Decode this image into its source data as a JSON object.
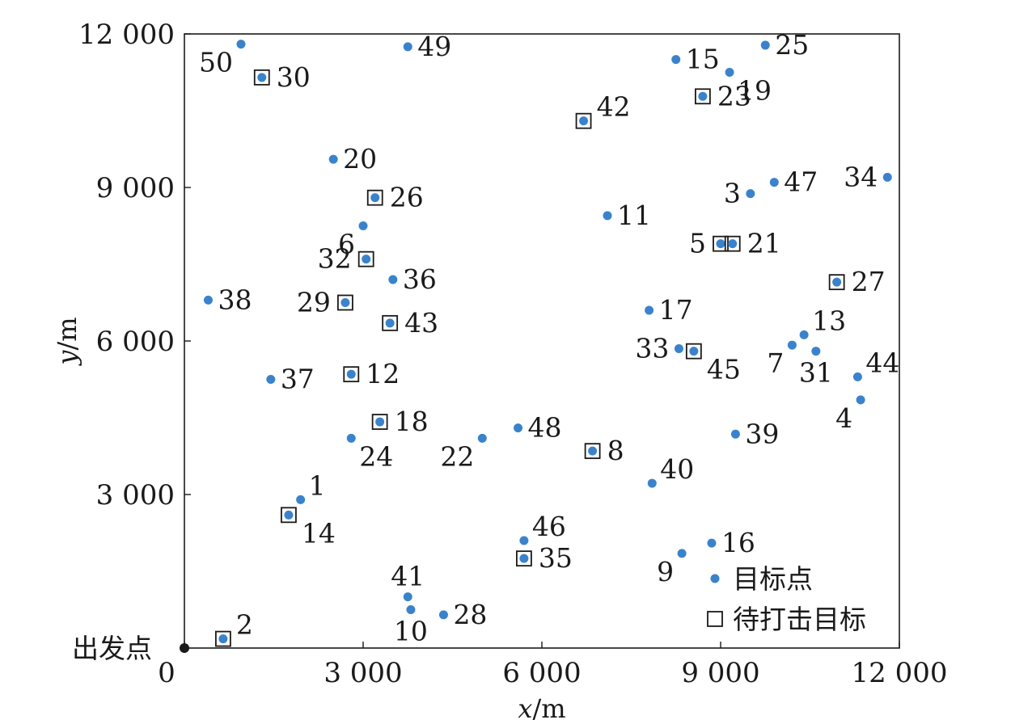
{
  "chart_data": {
    "type": "scatter",
    "xlabel_var": "x",
    "xlabel_unit": "/m",
    "ylabel_var": "y",
    "ylabel_unit": "/m",
    "xlim": [
      0,
      12000
    ],
    "ylim": [
      0,
      12000
    ],
    "x_ticks": [
      {
        "value": 0,
        "label": "0"
      },
      {
        "value": 3000,
        "label": "3 000"
      },
      {
        "value": 6000,
        "label": "6 000"
      },
      {
        "value": 9000,
        "label": "9 000"
      },
      {
        "value": 12000,
        "label": "12 000"
      }
    ],
    "y_ticks": [
      {
        "value": 3000,
        "label": "3 000"
      },
      {
        "value": 6000,
        "label": "6 000"
      },
      {
        "value": 9000,
        "label": "9 000"
      },
      {
        "value": 12000,
        "label": "12 000"
      }
    ],
    "grid": false,
    "legend_position": "bottom-right",
    "legend": [
      {
        "label": "目标点",
        "marker": "dot"
      },
      {
        "label": "待打击目标",
        "marker": "square"
      }
    ],
    "origin": {
      "label": "出发点",
      "x": 0,
      "y": 0
    },
    "colors": {
      "dot": "#3a83cc",
      "square": "#1a1a1a",
      "origin": "#1a1a1a"
    },
    "points": [
      {
        "id": "1",
        "x": 1950,
        "y": 2900,
        "target": false,
        "label_pos": "ne"
      },
      {
        "id": "2",
        "x": 650,
        "y": 180,
        "target": true,
        "label_pos": "ne"
      },
      {
        "id": "3",
        "x": 9500,
        "y": 8880,
        "target": false,
        "label_pos": "w"
      },
      {
        "id": "4",
        "x": 11350,
        "y": 4850,
        "target": false,
        "label_pos": "sw"
      },
      {
        "id": "5",
        "x": 9000,
        "y": 7900,
        "target": true,
        "label_pos": "w"
      },
      {
        "id": "6",
        "x": 3000,
        "y": 8250,
        "target": false,
        "label_pos": "sw"
      },
      {
        "id": "7",
        "x": 10200,
        "y": 5920,
        "target": false,
        "label_pos": "sw"
      },
      {
        "id": "8",
        "x": 6850,
        "y": 3850,
        "target": true,
        "label_pos": "e"
      },
      {
        "id": "9",
        "x": 8350,
        "y": 1850,
        "target": false,
        "label_pos": "sw"
      },
      {
        "id": "10",
        "x": 3800,
        "y": 750,
        "target": false,
        "label_pos": "s"
      },
      {
        "id": "11",
        "x": 7100,
        "y": 8450,
        "target": false,
        "label_pos": "e"
      },
      {
        "id": "12",
        "x": 2800,
        "y": 5350,
        "target": true,
        "label_pos": "e"
      },
      {
        "id": "13",
        "x": 10400,
        "y": 6120,
        "target": false,
        "label_pos": "ne"
      },
      {
        "id": "14",
        "x": 1750,
        "y": 2600,
        "target": true,
        "label_pos": "se"
      },
      {
        "id": "15",
        "x": 8250,
        "y": 11500,
        "target": false,
        "label_pos": "e"
      },
      {
        "id": "16",
        "x": 8850,
        "y": 2050,
        "target": false,
        "label_pos": "e"
      },
      {
        "id": "17",
        "x": 7800,
        "y": 6600,
        "target": false,
        "label_pos": "e"
      },
      {
        "id": "18",
        "x": 3280,
        "y": 4420,
        "target": true,
        "label_pos": "e"
      },
      {
        "id": "19",
        "x": 9150,
        "y": 11250,
        "target": false,
        "label_pos": "se"
      },
      {
        "id": "20",
        "x": 2500,
        "y": 9550,
        "target": false,
        "label_pos": "e"
      },
      {
        "id": "21",
        "x": 9200,
        "y": 7900,
        "target": true,
        "label_pos": "e"
      },
      {
        "id": "22",
        "x": 5000,
        "y": 4100,
        "target": false,
        "label_pos": "sw"
      },
      {
        "id": "23",
        "x": 8700,
        "y": 10780,
        "target": true,
        "label_pos": "e"
      },
      {
        "id": "24",
        "x": 2800,
        "y": 4100,
        "target": false,
        "label_pos": "se"
      },
      {
        "id": "25",
        "x": 9750,
        "y": 11780,
        "target": false,
        "label_pos": "e"
      },
      {
        "id": "26",
        "x": 3200,
        "y": 8800,
        "target": true,
        "label_pos": "e"
      },
      {
        "id": "27",
        "x": 10950,
        "y": 7150,
        "target": true,
        "label_pos": "e"
      },
      {
        "id": "28",
        "x": 4350,
        "y": 650,
        "target": false,
        "label_pos": "e"
      },
      {
        "id": "29",
        "x": 2700,
        "y": 6750,
        "target": true,
        "label_pos": "w"
      },
      {
        "id": "30",
        "x": 1300,
        "y": 11150,
        "target": true,
        "label_pos": "e"
      },
      {
        "id": "31",
        "x": 10600,
        "y": 5800,
        "target": false,
        "label_pos": "s"
      },
      {
        "id": "32",
        "x": 3050,
        "y": 7600,
        "target": true,
        "label_pos": "w"
      },
      {
        "id": "33",
        "x": 8300,
        "y": 5850,
        "target": false,
        "label_pos": "w"
      },
      {
        "id": "34",
        "x": 11800,
        "y": 9200,
        "target": false,
        "label_pos": "w"
      },
      {
        "id": "35",
        "x": 5700,
        "y": 1750,
        "target": true,
        "label_pos": "e"
      },
      {
        "id": "36",
        "x": 3500,
        "y": 7200,
        "target": false,
        "label_pos": "e"
      },
      {
        "id": "37",
        "x": 1450,
        "y": 5250,
        "target": false,
        "label_pos": "e"
      },
      {
        "id": "38",
        "x": 400,
        "y": 6800,
        "target": false,
        "label_pos": "e"
      },
      {
        "id": "39",
        "x": 9250,
        "y": 4180,
        "target": false,
        "label_pos": "e"
      },
      {
        "id": "40",
        "x": 7850,
        "y": 3220,
        "target": false,
        "label_pos": "ne"
      },
      {
        "id": "41",
        "x": 3750,
        "y": 1000,
        "target": false,
        "label_pos": "n"
      },
      {
        "id": "42",
        "x": 6700,
        "y": 10300,
        "target": true,
        "label_pos": "ne"
      },
      {
        "id": "43",
        "x": 3450,
        "y": 6350,
        "target": true,
        "label_pos": "e"
      },
      {
        "id": "44",
        "x": 11300,
        "y": 5300,
        "target": false,
        "label_pos": "ne"
      },
      {
        "id": "45",
        "x": 8550,
        "y": 5800,
        "target": true,
        "label_pos": "se"
      },
      {
        "id": "46",
        "x": 5700,
        "y": 2100,
        "target": false,
        "label_pos": "ne"
      },
      {
        "id": "47",
        "x": 9900,
        "y": 9100,
        "target": false,
        "label_pos": "e"
      },
      {
        "id": "48",
        "x": 5600,
        "y": 4300,
        "target": false,
        "label_pos": "e"
      },
      {
        "id": "49",
        "x": 3750,
        "y": 11750,
        "target": false,
        "label_pos": "e"
      },
      {
        "id": "50",
        "x": 950,
        "y": 11800,
        "target": false,
        "label_pos": "sw"
      }
    ]
  }
}
